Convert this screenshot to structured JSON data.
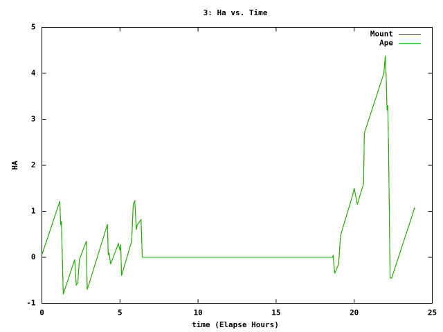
{
  "chart_data": {
    "type": "line",
    "title": "3: Ha vs. Time",
    "x_label": "time (Elapse Hours)",
    "y_label": "HA",
    "xlim": [
      0,
      25
    ],
    "ylim": [
      -1,
      5
    ],
    "xticks": [
      0,
      5,
      10,
      15,
      20,
      25
    ],
    "yticks": [
      -1,
      0,
      1,
      2,
      3,
      4,
      5
    ],
    "grid": false,
    "legend": "top-right",
    "x": [
      0,
      1.15,
      1.2,
      1.25,
      1.37,
      2.1,
      2.2,
      2.3,
      2.4,
      2.85,
      2.9,
      3.0,
      4.2,
      4.25,
      4.3,
      4.4,
      4.9,
      5.0,
      5.05,
      5.1,
      5.75,
      5.85,
      5.95,
      6.05,
      6.1,
      6.35,
      6.43,
      18.62,
      18.65,
      18.75,
      19.0,
      19.1,
      19.15,
      19.9,
      20.0,
      20.2,
      20.6,
      20.65,
      21.9,
      21.99,
      22.05,
      22.1,
      22.15,
      22.2,
      22.3,
      22.4,
      23.8,
      23.85,
      23.9
    ],
    "series": [
      {
        "name": "Mount",
        "color": "#ff0000",
        "values": [
          0.05,
          1.22,
          0.7,
          0.78,
          -0.8,
          -0.05,
          -0.6,
          -0.55,
          -0.05,
          0.35,
          -0.7,
          -0.6,
          0.72,
          0.05,
          0.1,
          -0.15,
          0.3,
          0.15,
          0.28,
          -0.4,
          0.35,
          1.15,
          1.22,
          0.6,
          0.7,
          0.82,
          0.0,
          0.0,
          0.05,
          -0.35,
          -0.15,
          0.35,
          0.5,
          1.35,
          1.5,
          1.15,
          1.6,
          2.7,
          4.0,
          4.38,
          3.9,
          3.2,
          3.3,
          2.4,
          -0.45,
          -0.45,
          1.0,
          1.07,
          1.05
        ]
      },
      {
        "name": "Ape",
        "color": "#00c000",
        "values": [
          0.05,
          1.22,
          0.7,
          0.78,
          -0.8,
          -0.05,
          -0.6,
          -0.55,
          -0.05,
          0.35,
          -0.7,
          -0.6,
          0.72,
          0.05,
          0.1,
          -0.15,
          0.3,
          0.15,
          0.28,
          -0.4,
          0.35,
          1.15,
          1.22,
          0.6,
          0.7,
          0.82,
          0.0,
          0.0,
          0.05,
          -0.35,
          -0.15,
          0.35,
          0.5,
          1.35,
          1.5,
          1.15,
          1.6,
          2.7,
          4.0,
          4.38,
          3.9,
          3.2,
          3.3,
          2.4,
          -0.45,
          -0.45,
          1.0,
          1.07,
          1.05
        ]
      }
    ]
  }
}
